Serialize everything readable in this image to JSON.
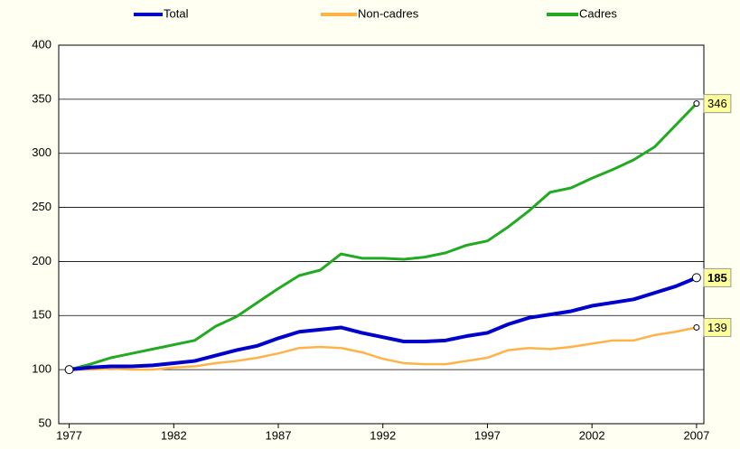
{
  "chart_data": {
    "type": "line",
    "x": [
      1977,
      1978,
      1979,
      1980,
      1981,
      1982,
      1983,
      1984,
      1985,
      1986,
      1987,
      1988,
      1989,
      1990,
      1991,
      1992,
      1993,
      1994,
      1995,
      1996,
      1997,
      1998,
      1999,
      2000,
      2001,
      2002,
      2003,
      2004,
      2005,
      2006,
      2007
    ],
    "series": [
      {
        "name": "Total",
        "color": "#0000cc",
        "values": [
          100,
          102,
          103,
          103,
          104,
          106,
          108,
          113,
          118,
          122,
          129,
          135,
          137,
          139,
          134,
          130,
          126,
          126,
          127,
          131,
          134,
          142,
          148,
          151,
          154,
          159,
          162,
          165,
          171,
          177,
          185
        ]
      },
      {
        "name": "Non-cadres",
        "color": "#ffb347",
        "values": [
          100,
          100,
          101,
          100,
          100,
          102,
          103,
          106,
          108,
          111,
          115,
          120,
          121,
          120,
          116,
          110,
          106,
          105,
          105,
          108,
          111,
          118,
          120,
          119,
          121,
          124,
          127,
          127,
          132,
          135,
          139
        ]
      },
      {
        "name": "Cadres",
        "color": "#22aa22",
        "values": [
          100,
          105,
          111,
          115,
          119,
          123,
          127,
          140,
          149,
          162,
          175,
          187,
          192,
          207,
          203,
          203,
          202,
          204,
          208,
          215,
          219,
          232,
          247,
          264,
          268,
          277,
          285,
          294,
          306,
          326,
          346
        ]
      }
    ],
    "xlim": [
      1976.5,
      2007.35
    ],
    "xticks": [
      1977,
      1982,
      1987,
      1992,
      1997,
      2002,
      2007
    ],
    "ylim": [
      50,
      400
    ],
    "yticks": [
      50,
      100,
      150,
      200,
      250,
      300,
      350,
      400
    ],
    "grid": true,
    "legend": "top"
  }
}
